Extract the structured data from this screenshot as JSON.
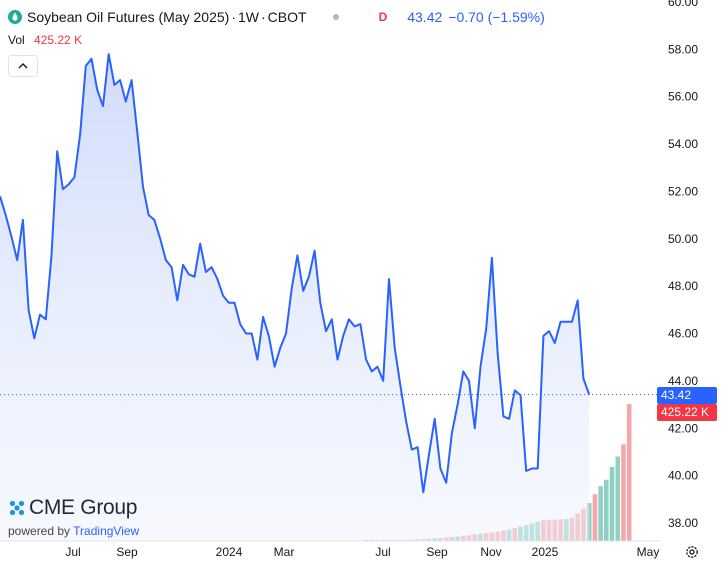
{
  "header": {
    "title": "Soybean Oil Futures (May 2025)",
    "interval": "1W",
    "exchange": "CBOT",
    "separator": "·",
    "market_status": "D",
    "last": "43.42",
    "change": "−0.70 (−1.59%)"
  },
  "volume": {
    "label": "Vol",
    "value": "425.22 K"
  },
  "tags": {
    "price": "43.42",
    "volume": "425.22 K"
  },
  "logo": {
    "brand": "CME Group",
    "powered_prefix": "powered by",
    "powered_brand": "TradingView"
  },
  "colors": {
    "line": "#2962ff",
    "fill": "#dbe4fb",
    "vol_up": "#8fd0c2",
    "vol_down": "#f2a8a8",
    "price_tag": "#2962ff",
    "vol_tag": "#f23645"
  },
  "chart_data": {
    "type": "area",
    "title": "Soybean Oil Futures (May 2025)",
    "ylim": [
      37.5,
      60.2
    ],
    "y_ticks": [
      "38.00",
      "40.00",
      "42.00",
      "44.00",
      "46.00",
      "48.00",
      "50.00",
      "52.00",
      "54.00",
      "56.00",
      "58.00",
      "60.00"
    ],
    "x_ticks": [
      "Jul",
      "Sep",
      "2024",
      "Mar",
      "Jul",
      "Sep",
      "Nov",
      "2025",
      "May"
    ],
    "grid": false,
    "last_price": 43.42,
    "series": [
      {
        "values": [
          51.8,
          51.0,
          50.1,
          49.1,
          50.8,
          47.0,
          45.8,
          46.8,
          46.6,
          49.3,
          53.7,
          52.1,
          52.3,
          52.6,
          54.4,
          57.3,
          57.6,
          56.3,
          55.6,
          57.8,
          56.5,
          56.7,
          55.8,
          56.7,
          54.5,
          52.2,
          51.0,
          50.8,
          50.0,
          49.1,
          48.8,
          47.4,
          48.9,
          48.5,
          48.4,
          49.8,
          48.6,
          48.8,
          48.3,
          47.6,
          47.3,
          47.3,
          46.4,
          46.0,
          46.0,
          44.9,
          46.7,
          45.9,
          44.6,
          45.4,
          46.0,
          47.9,
          49.3,
          47.8,
          48.4,
          49.5,
          47.3,
          46.1,
          46.6,
          44.9,
          45.9,
          46.6,
          46.3,
          46.4,
          44.9,
          44.4,
          44.6,
          44.0,
          48.3,
          45.4,
          43.8,
          42.3,
          41.1,
          41.2,
          39.3,
          40.9,
          42.4,
          40.3,
          39.7,
          41.8,
          43.0,
          44.4,
          44.0,
          42.0,
          44.6,
          46.2,
          49.2,
          45.2,
          42.5,
          42.4,
          43.6,
          43.4,
          40.2,
          40.3,
          40.3,
          45.9,
          46.1,
          45.6,
          46.5,
          46.5,
          46.5,
          47.4,
          44.1,
          43.42
        ]
      }
    ],
    "volume": {
      "label": "Vol",
      "start_index": 64,
      "values_k": [
        1,
        1,
        1,
        1,
        1,
        1,
        2,
        3,
        4,
        5,
        6,
        7,
        8,
        9,
        11,
        12,
        14,
        16,
        18,
        20,
        22,
        24,
        26,
        29,
        32,
        35,
        40,
        45,
        50,
        55,
        60,
        65,
        66,
        66,
        67,
        68,
        72,
        85,
        100,
        118,
        145,
        170,
        190,
        230,
        262,
        300,
        425
      ],
      "up": [
        true,
        false,
        false,
        true,
        false,
        false,
        true,
        false,
        false,
        true,
        false,
        false,
        true,
        false,
        false,
        false,
        true,
        false,
        false,
        false,
        true,
        false,
        false,
        false,
        false,
        true,
        false,
        true,
        true,
        true,
        true,
        false,
        false,
        false,
        false,
        true,
        false,
        false,
        false,
        true,
        false,
        true,
        true,
        true,
        true,
        false,
        false
      ]
    }
  }
}
